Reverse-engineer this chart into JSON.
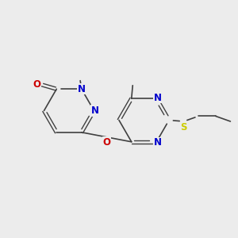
{
  "background_color": "#ececec",
  "bond_color": "#404040",
  "nitrogen_color": "#0000cc",
  "oxygen_color": "#cc0000",
  "sulfur_color": "#cccc00",
  "carbon_color": "#404040",
  "figsize": [
    3.0,
    3.0
  ],
  "dpi": 100,
  "xlim": [
    0,
    10
  ],
  "ylim": [
    0,
    10
  ]
}
